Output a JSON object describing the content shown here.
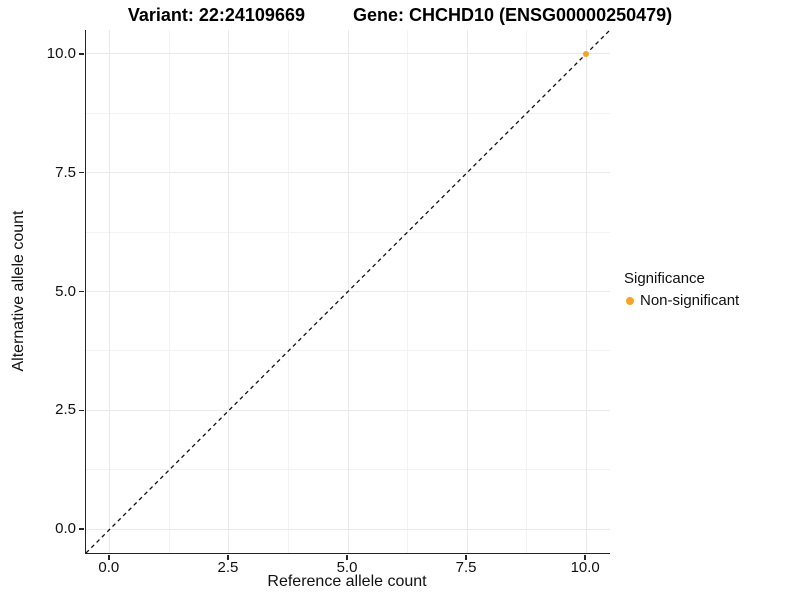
{
  "header": {
    "title_left": "Variant: 22:24109669",
    "title_right": "Gene: CHCHD10 (ENSG00000250479)"
  },
  "chart_data": {
    "type": "scatter",
    "title": "Variant: 22:24109669    Gene: CHCHD10 (ENSG00000250479)",
    "xlabel": "Reference allele count",
    "ylabel": "Alternative allele count",
    "xlim": [
      -0.5,
      10.5
    ],
    "ylim": [
      -0.5,
      10.5
    ],
    "x_major_ticks": [
      0,
      2.5,
      5,
      7.5,
      10
    ],
    "x_tick_labels": [
      "0.0",
      "2.5",
      "5.0",
      "7.5",
      "10.0"
    ],
    "y_major_ticks": [
      0,
      2.5,
      5,
      7.5,
      10
    ],
    "y_tick_labels": [
      "0.0",
      "2.5",
      "5.0",
      "7.5",
      "10.0"
    ],
    "x_minor_ticks": [
      1.25,
      3.75,
      6.25,
      8.75
    ],
    "y_minor_ticks": [
      1.25,
      3.75,
      6.25,
      8.75
    ],
    "grid": true,
    "series": [
      {
        "name": "Non-significant",
        "color": "#F9A228",
        "points": [
          {
            "x": 10,
            "y": 10
          }
        ]
      }
    ],
    "reference_line": {
      "type": "identity",
      "style": "dashed",
      "color": "#111111",
      "from": [
        -0.5,
        -0.5
      ],
      "to": [
        10.5,
        10.5
      ]
    },
    "legend": {
      "title": "Significance",
      "position": "right",
      "items": [
        {
          "label": "Non-significant",
          "color": "#F9A228",
          "marker": "circle"
        }
      ]
    }
  },
  "colors": {
    "background": "#ffffff",
    "axis_line": "#252525",
    "grid_major": "#e9e9e9",
    "grid_minor": "#f3f3f3",
    "dashed_line": "#111111",
    "point_orange": "#F9A228"
  }
}
